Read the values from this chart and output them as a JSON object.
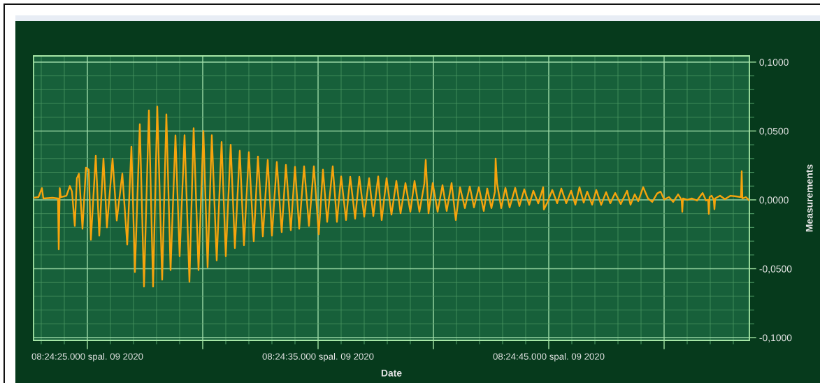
{
  "chart_data": {
    "type": "line",
    "xlabel": "Date",
    "ylabel": "Measurements",
    "x": [
      "2020-10-09T08:24:22.667",
      "2020-10-09T08:24:22.879",
      "2020-10-09T08:24:23.030",
      "2020-10-09T08:24:23.091",
      "2020-10-09T08:24:23.485",
      "2020-10-09T08:24:23.727",
      "2020-10-09T08:24:23.758",
      "2020-10-09T08:24:23.803",
      "2020-10-09T08:24:23.848",
      "2020-10-09T08:24:24.091",
      "2020-10-09T08:24:24.242",
      "2020-10-09T08:24:24.333",
      "2020-10-09T08:24:24.455",
      "2020-10-09T08:24:24.545",
      "2020-10-09T08:24:24.636",
      "2020-10-09T08:24:24.788",
      "2020-10-09T08:24:24.939",
      "2020-10-09T08:24:25.061",
      "2020-10-09T08:24:25.152",
      "2020-10-09T08:24:25.364",
      "2020-10-09T08:24:25.515",
      "2020-10-09T08:24:25.697",
      "2020-10-09T08:24:25.848",
      "2020-10-09T08:24:26.091",
      "2020-10-09T08:24:26.273",
      "2020-10-09T08:24:26.515",
      "2020-10-09T08:24:26.727",
      "2020-10-09T08:24:26.909",
      "2020-10-09T08:24:27.061",
      "2020-10-09T08:24:27.273",
      "2020-10-09T08:24:27.455",
      "2020-10-09T08:24:27.667",
      "2020-10-09T08:24:27.848",
      "2020-10-09T08:24:28.030",
      "2020-10-09T08:24:28.242",
      "2020-10-09T08:24:28.424",
      "2020-10-09T08:24:28.606",
      "2020-10-09T08:24:28.818",
      "2020-10-09T08:24:29.000",
      "2020-10-09T08:24:29.212",
      "2020-10-09T08:24:29.424",
      "2020-10-09T08:24:29.606",
      "2020-10-09T08:24:29.818",
      "2020-10-09T08:24:30.030",
      "2020-10-09T08:24:30.212",
      "2020-10-09T08:24:30.394",
      "2020-10-09T08:24:30.606",
      "2020-10-09T08:24:30.818",
      "2020-10-09T08:24:31.000",
      "2020-10-09T08:24:31.212",
      "2020-10-09T08:24:31.394",
      "2020-10-09T08:24:31.606",
      "2020-10-09T08:24:31.788",
      "2020-10-09T08:24:32.000",
      "2020-10-09T08:24:32.212",
      "2020-10-09T08:24:32.394",
      "2020-10-09T08:24:32.606",
      "2020-10-09T08:24:32.818",
      "2020-10-09T08:24:33.000",
      "2020-10-09T08:24:33.212",
      "2020-10-09T08:24:33.424",
      "2020-10-09T08:24:33.606",
      "2020-10-09T08:24:33.818",
      "2020-10-09T08:24:34.000",
      "2020-10-09T08:24:34.182",
      "2020-10-09T08:24:34.394",
      "2020-10-09T08:24:34.606",
      "2020-10-09T08:24:34.818",
      "2020-10-09T08:24:35.030",
      "2020-10-09T08:24:35.212",
      "2020-10-09T08:24:35.394",
      "2020-10-09T08:24:35.636",
      "2020-10-09T08:24:35.818",
      "2020-10-09T08:24:36.000",
      "2020-10-09T08:24:36.212",
      "2020-10-09T08:24:36.394",
      "2020-10-09T08:24:36.606",
      "2020-10-09T08:24:36.788",
      "2020-10-09T08:24:37.000",
      "2020-10-09T08:24:37.212",
      "2020-10-09T08:24:37.394",
      "2020-10-09T08:24:37.606",
      "2020-10-09T08:24:37.758",
      "2020-10-09T08:24:37.970",
      "2020-10-09T08:24:38.182",
      "2020-10-09T08:24:38.394",
      "2020-10-09T08:24:38.576",
      "2020-10-09T08:24:38.788",
      "2020-10-09T08:24:39.000",
      "2020-10-09T08:24:39.182",
      "2020-10-09T08:24:39.394",
      "2020-10-09T08:24:39.606",
      "2020-10-09T08:24:39.667",
      "2020-10-09T08:24:39.727",
      "2020-10-09T08:24:39.788",
      "2020-10-09T08:24:39.970",
      "2020-10-09T08:24:40.182",
      "2020-10-09T08:24:40.394",
      "2020-10-09T08:24:40.576",
      "2020-10-09T08:24:40.788",
      "2020-10-09T08:24:40.970",
      "2020-10-09T08:24:41.152",
      "2020-10-09T08:24:41.364",
      "2020-10-09T08:24:41.576",
      "2020-10-09T08:24:41.758",
      "2020-10-09T08:24:41.970",
      "2020-10-09T08:24:42.182",
      "2020-10-09T08:24:42.333",
      "2020-10-09T08:24:42.515",
      "2020-10-09T08:24:42.667",
      "2020-10-09T08:24:42.697",
      "2020-10-09T08:24:42.758",
      "2020-10-09T08:24:42.939",
      "2020-10-09T08:24:43.121",
      "2020-10-09T08:24:43.303",
      "2020-10-09T08:24:43.545",
      "2020-10-09T08:24:43.727",
      "2020-10-09T08:24:43.939",
      "2020-10-09T08:24:44.152",
      "2020-10-09T08:24:44.333",
      "2020-10-09T08:24:44.545",
      "2020-10-09T08:24:44.758",
      "2020-10-09T08:24:44.788",
      "2020-10-09T08:24:44.939",
      "2020-10-09T08:24:45.152",
      "2020-10-09T08:24:45.364",
      "2020-10-09T08:24:45.545",
      "2020-10-09T08:24:45.758",
      "2020-10-09T08:24:45.970",
      "2020-10-09T08:24:46.152",
      "2020-10-09T08:24:46.333",
      "2020-10-09T08:24:46.515",
      "2020-10-09T08:24:46.667",
      "2020-10-09T08:24:46.879",
      "2020-10-09T08:24:47.061",
      "2020-10-09T08:24:47.273",
      "2020-10-09T08:24:47.485",
      "2020-10-09T08:24:47.667",
      "2020-10-09T08:24:47.879",
      "2020-10-09T08:24:48.121",
      "2020-10-09T08:24:48.394",
      "2020-10-09T08:24:48.545",
      "2020-10-09T08:24:48.727",
      "2020-10-09T08:24:48.879",
      "2020-10-09T08:24:49.091",
      "2020-10-09T08:24:49.303",
      "2020-10-09T08:24:49.485",
      "2020-10-09T08:24:49.697",
      "2020-10-09T08:24:49.848",
      "2020-10-09T08:24:50.000",
      "2020-10-09T08:24:50.212",
      "2020-10-09T08:24:50.394",
      "2020-10-09T08:24:50.606",
      "2020-10-09T08:24:50.758",
      "2020-10-09T08:24:50.788",
      "2020-10-09T08:24:50.818",
      "2020-10-09T08:24:51.000",
      "2020-10-09T08:24:51.212",
      "2020-10-09T08:24:51.424",
      "2020-10-09T08:24:51.667",
      "2020-10-09T08:24:51.818",
      "2020-10-09T08:24:51.909",
      "2020-10-09T08:24:51.939",
      "2020-10-09T08:24:51.970",
      "2020-10-09T08:24:52.061",
      "2020-10-09T08:24:52.152",
      "2020-10-09T08:24:52.182",
      "2020-10-09T08:24:52.212",
      "2020-10-09T08:24:52.424",
      "2020-10-09T08:24:52.636",
      "2020-10-09T08:24:52.879",
      "2020-10-09T08:24:53.121",
      "2020-10-09T08:24:53.333",
      "2020-10-09T08:24:53.364",
      "2020-10-09T08:24:53.394",
      "2020-10-09T08:24:53.545",
      "2020-10-09T08:24:53.667"
    ],
    "series": [
      {
        "color": "#f6a40d",
        "values": [
          0.0015,
          0.002,
          0.0085,
          0.001,
          0.0015,
          0.001,
          -0.036,
          0.0085,
          0.002,
          0.003,
          0.01,
          0.006,
          -0.019,
          0.0157,
          0.019,
          -0.021,
          0.0234,
          0.022,
          -0.029,
          0.032,
          -0.026,
          0.03,
          -0.02,
          0.03,
          -0.015,
          0.019,
          -0.0325,
          0.0386,
          -0.0524,
          0.055,
          -0.063,
          0.065,
          -0.063,
          0.0677,
          -0.058,
          0.062,
          -0.051,
          0.0468,
          -0.041,
          0.047,
          -0.0595,
          0.052,
          -0.051,
          0.05,
          -0.049,
          0.047,
          -0.044,
          0.042,
          -0.041,
          0.04,
          -0.035,
          0.0356,
          -0.033,
          0.0346,
          -0.03,
          0.0315,
          -0.0265,
          0.029,
          -0.026,
          0.0275,
          -0.0234,
          0.0254,
          -0.022,
          0.024,
          -0.021,
          0.0244,
          -0.019,
          0.0244,
          -0.025,
          0.022,
          -0.016,
          0.0244,
          -0.016,
          0.017,
          -0.0147,
          0.0168,
          -0.0137,
          0.0168,
          -0.0122,
          0.0158,
          -0.0117,
          0.017,
          -0.0147,
          0.0158,
          -0.0107,
          0.0137,
          -0.0097,
          0.0122,
          -0.0087,
          0.0137,
          -0.0087,
          0.0117,
          0.029,
          0.01,
          -0.0097,
          0.0122,
          -0.0087,
          0.0107,
          -0.008,
          0.0122,
          -0.0147,
          0.0092,
          -0.006,
          0.0097,
          -0.0055,
          0.0092,
          -0.008,
          0.0082,
          -0.006,
          0.006,
          0.03,
          0.012,
          -0.006,
          0.0087,
          -0.0055,
          0.0087,
          -0.0045,
          0.0077,
          -0.0036,
          0.0066,
          -0.0026,
          0.0092,
          -0.007,
          -0.002,
          0.0072,
          -0.0025,
          0.0082,
          -0.0025,
          0.0066,
          -0.0035,
          0.0092,
          -0.002,
          0.006,
          -0.0035,
          0.0072,
          -0.0036,
          0.0056,
          -0.0025,
          0.005,
          -0.003,
          0.0066,
          -0.0035,
          0.004,
          -0.001,
          0.0092,
          0.001,
          -0.0015,
          0.0046,
          0.006,
          0.0003,
          0.002,
          -0.0015,
          0.004,
          0.0,
          -0.0087,
          0.001,
          0.0,
          0.001,
          -0.0005,
          0.005,
          -0.0005,
          0.0,
          -0.0102,
          0.002,
          0.003,
          0.0,
          -0.0068,
          0.001,
          0.003,
          0.0005,
          0.003,
          0.0025,
          0.002,
          0.0208,
          0.001,
          0.002,
          0.0
        ]
      }
    ],
    "xlim": [
      "2020-10-09T08:24:22.667",
      "2020-10-09T08:24:53.697"
    ],
    "ylim": [
      -0.102,
      0.1045
    ],
    "xticks": [
      {
        "value": "2020-10-09T08:24:23",
        "label": null
      },
      {
        "value": "2020-10-09T08:24:24",
        "label": null
      },
      {
        "value": "2020-10-09T08:24:25",
        "label": "08:24:25.000 spal. 09 2020"
      },
      {
        "value": "2020-10-09T08:24:26",
        "label": null
      },
      {
        "value": "2020-10-09T08:24:27",
        "label": null
      },
      {
        "value": "2020-10-09T08:24:28",
        "label": null
      },
      {
        "value": "2020-10-09T08:24:29",
        "label": null
      },
      {
        "value": "2020-10-09T08:24:30",
        "label": null
      },
      {
        "value": "2020-10-09T08:24:31",
        "label": null
      },
      {
        "value": "2020-10-09T08:24:32",
        "label": null
      },
      {
        "value": "2020-10-09T08:24:33",
        "label": null
      },
      {
        "value": "2020-10-09T08:24:34",
        "label": null
      },
      {
        "value": "2020-10-09T08:24:35",
        "label": "08:24:35.000 spal. 09 2020"
      },
      {
        "value": "2020-10-09T08:24:36",
        "label": null
      },
      {
        "value": "2020-10-09T08:24:37",
        "label": null
      },
      {
        "value": "2020-10-09T08:24:38",
        "label": null
      },
      {
        "value": "2020-10-09T08:24:39",
        "label": null
      },
      {
        "value": "2020-10-09T08:24:40",
        "label": null
      },
      {
        "value": "2020-10-09T08:24:41",
        "label": null
      },
      {
        "value": "2020-10-09T08:24:42",
        "label": null
      },
      {
        "value": "2020-10-09T08:24:43",
        "label": null
      },
      {
        "value": "2020-10-09T08:24:44",
        "label": null
      },
      {
        "value": "2020-10-09T08:24:45",
        "label": "08:24:45.000 spal. 09 2020"
      },
      {
        "value": "2020-10-09T08:24:46",
        "label": null
      },
      {
        "value": "2020-10-09T08:24:47",
        "label": null
      },
      {
        "value": "2020-10-09T08:24:48",
        "label": null
      },
      {
        "value": "2020-10-09T08:24:49",
        "label": null
      },
      {
        "value": "2020-10-09T08:24:50",
        "label": null
      },
      {
        "value": "2020-10-09T08:24:51",
        "label": null
      },
      {
        "value": "2020-10-09T08:24:52",
        "label": null
      },
      {
        "value": "2020-10-09T08:24:53",
        "label": null
      }
    ],
    "yticks": [
      {
        "value": 0.1,
        "label": "0,1000"
      },
      {
        "value": 0.09,
        "label": null
      },
      {
        "value": 0.08,
        "label": null
      },
      {
        "value": 0.07,
        "label": null
      },
      {
        "value": 0.06,
        "label": null
      },
      {
        "value": 0.05,
        "label": "0,0500"
      },
      {
        "value": 0.04,
        "label": null
      },
      {
        "value": 0.03,
        "label": null
      },
      {
        "value": 0.02,
        "label": null
      },
      {
        "value": 0.01,
        "label": null
      },
      {
        "value": 0,
        "label": "0,0000"
      },
      {
        "value": -0.01,
        "label": null
      },
      {
        "value": -0.02,
        "label": null
      },
      {
        "value": -0.03,
        "label": null
      },
      {
        "value": -0.04,
        "label": null
      },
      {
        "value": -0.05,
        "label": "-0,0500"
      },
      {
        "value": -0.06,
        "label": null
      },
      {
        "value": -0.07,
        "label": null
      },
      {
        "value": -0.08,
        "label": null
      },
      {
        "value": -0.09,
        "label": null
      },
      {
        "value": -0.1,
        "label": "-0,1000"
      }
    ],
    "grid": true
  }
}
